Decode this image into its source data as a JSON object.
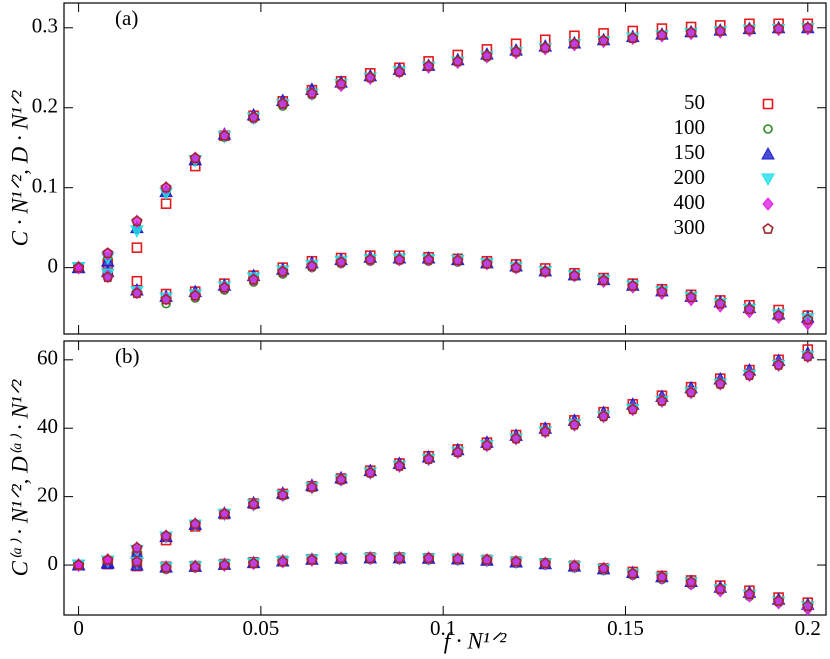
{
  "chart_data": [
    {
      "type": "scatter",
      "annotation": "(a)",
      "ylabel": "C · N¹ᐟ²,  D · N¹ᐟ²",
      "x": [
        0,
        0.008,
        0.016,
        0.024,
        0.032,
        0.04,
        0.048,
        0.056,
        0.064,
        0.072,
        0.08,
        0.088,
        0.096,
        0.104,
        0.112,
        0.12,
        0.128,
        0.136,
        0.144,
        0.152,
        0.16,
        0.168,
        0.176,
        0.184,
        0.192,
        0.2
      ],
      "xlim": [
        -0.004,
        0.205
      ],
      "xticks": [
        0,
        0.05,
        0.1,
        0.15,
        0.2
      ],
      "show_xtick_labels": false,
      "ylim": [
        -0.083,
        0.331
      ],
      "yticks": [
        0,
        0.1,
        0.2,
        0.3
      ],
      "legend": "upper right",
      "series": [
        {
          "name": "50",
          "color": "#e41a1c",
          "marker": "square",
          "upper": [
            0,
            0.005,
            0.025,
            0.08,
            0.127,
            0.165,
            0.19,
            0.208,
            0.222,
            0.233,
            0.243,
            0.25,
            0.258,
            0.266,
            0.273,
            0.28,
            0.285,
            0.29,
            0.293,
            0.296,
            0.299,
            0.301,
            0.303,
            0.305,
            0.305,
            0.305
          ],
          "lower": [
            0,
            -0.003,
            -0.017,
            -0.033,
            -0.03,
            -0.02,
            -0.01,
            0.0,
            0.008,
            0.012,
            0.015,
            0.015,
            0.013,
            0.011,
            0.008,
            0.004,
            -0.001,
            -0.007,
            -0.013,
            -0.02,
            -0.027,
            -0.034,
            -0.041,
            -0.047,
            -0.053,
            -0.06
          ]
        },
        {
          "name": "100",
          "color": "#2e8b20",
          "marker": "circle",
          "upper": [
            0,
            0.012,
            0.048,
            0.093,
            0.133,
            0.163,
            0.186,
            0.202,
            0.216,
            0.228,
            0.237,
            0.244,
            0.251,
            0.257,
            0.263,
            0.269,
            0.274,
            0.279,
            0.283,
            0.287,
            0.29,
            0.293,
            0.295,
            0.297,
            0.298,
            0.299
          ],
          "lower": [
            0,
            -0.01,
            -0.03,
            -0.045,
            -0.038,
            -0.028,
            -0.018,
            -0.008,
            0.0,
            0.005,
            0.008,
            0.009,
            0.008,
            0.007,
            0.004,
            -0.001,
            -0.006,
            -0.011,
            -0.017,
            -0.024,
            -0.031,
            -0.038,
            -0.046,
            -0.053,
            -0.06,
            -0.066
          ]
        },
        {
          "name": "150",
          "color": "#1f1fd0",
          "marker": "triangle",
          "upper": [
            0,
            0.008,
            0.05,
            0.095,
            0.135,
            0.167,
            0.191,
            0.209,
            0.223,
            0.232,
            0.24,
            0.248,
            0.253,
            0.26,
            0.267,
            0.272,
            0.277,
            0.281,
            0.285,
            0.289,
            0.292,
            0.295,
            0.297,
            0.299,
            0.3,
            0.3
          ],
          "lower": [
            0,
            -0.005,
            -0.028,
            -0.036,
            -0.03,
            -0.022,
            -0.01,
            -0.002,
            0.006,
            0.01,
            0.013,
            0.012,
            0.012,
            0.01,
            0.006,
            0.002,
            -0.004,
            -0.009,
            -0.015,
            -0.022,
            -0.029,
            -0.036,
            -0.043,
            -0.05,
            -0.058,
            -0.062
          ]
        },
        {
          "name": "200",
          "color": "#22e0e8",
          "marker": "triangle-down",
          "upper": [
            0,
            0.012,
            0.046,
            0.093,
            0.134,
            0.164,
            0.187,
            0.204,
            0.217,
            0.229,
            0.237,
            0.245,
            0.251,
            0.257,
            0.264,
            0.269,
            0.274,
            0.279,
            0.283,
            0.287,
            0.29,
            0.293,
            0.295,
            0.297,
            0.298,
            0.299
          ],
          "lower": [
            0,
            -0.008,
            -0.03,
            -0.038,
            -0.034,
            -0.024,
            -0.013,
            -0.004,
            0.003,
            0.008,
            0.01,
            0.011,
            0.01,
            0.009,
            0.005,
            0.0,
            -0.005,
            -0.01,
            -0.016,
            -0.023,
            -0.03,
            -0.037,
            -0.045,
            -0.052,
            -0.059,
            -0.064
          ]
        },
        {
          "name": "400",
          "color": "#e020e8",
          "marker": "diamond",
          "upper": [
            0,
            0.017,
            0.058,
            0.1,
            0.137,
            0.166,
            0.188,
            0.205,
            0.218,
            0.228,
            0.237,
            0.245,
            0.251,
            0.257,
            0.264,
            0.269,
            0.274,
            0.279,
            0.283,
            0.287,
            0.29,
            0.293,
            0.295,
            0.297,
            0.298,
            0.299
          ],
          "lower": [
            0,
            -0.011,
            -0.031,
            -0.039,
            -0.035,
            -0.025,
            -0.015,
            -0.005,
            0.002,
            0.007,
            0.01,
            0.01,
            0.01,
            0.009,
            0.005,
            0.0,
            -0.005,
            -0.01,
            -0.017,
            -0.024,
            -0.032,
            -0.04,
            -0.048,
            -0.055,
            -0.062,
            -0.07
          ]
        },
        {
          "name": "300",
          "color": "#a0282a",
          "marker": "pentagon",
          "upper": [
            0,
            0.018,
            0.058,
            0.1,
            0.137,
            0.165,
            0.188,
            0.205,
            0.218,
            0.23,
            0.238,
            0.245,
            0.252,
            0.258,
            0.265,
            0.27,
            0.275,
            0.28,
            0.284,
            0.287,
            0.291,
            0.294,
            0.296,
            0.298,
            0.299,
            0.3
          ],
          "lower": [
            0,
            -0.012,
            -0.032,
            -0.04,
            -0.035,
            -0.025,
            -0.015,
            -0.005,
            0.002,
            0.007,
            0.01,
            0.01,
            0.01,
            0.009,
            0.005,
            0.0,
            -0.005,
            -0.01,
            -0.016,
            -0.023,
            -0.03,
            -0.037,
            -0.045,
            -0.052,
            -0.06,
            -0.065
          ]
        }
      ]
    },
    {
      "type": "scatter",
      "annotation": "(b)",
      "ylabel": "C⁽ᵃ⁾ · N¹ᐟ²,  D⁽ᵃ⁾ · N¹ᐟ²",
      "xlabel": "f · N¹ᐟ²",
      "x": [
        0,
        0.008,
        0.016,
        0.024,
        0.032,
        0.04,
        0.048,
        0.056,
        0.064,
        0.072,
        0.08,
        0.088,
        0.096,
        0.104,
        0.112,
        0.12,
        0.128,
        0.136,
        0.144,
        0.152,
        0.16,
        0.168,
        0.176,
        0.184,
        0.192,
        0.2
      ],
      "xlim": [
        -0.004,
        0.205
      ],
      "xticks": [
        0,
        0.05,
        0.1,
        0.15,
        0.2
      ],
      "show_xtick_labels": true,
      "ylim": [
        -14.6,
        65.5
      ],
      "yticks": [
        0,
        20,
        40,
        60
      ],
      "series": [
        {
          "name": "50",
          "color": "#e41a1c",
          "marker": "square",
          "upper": [
            0,
            0.3,
            2.5,
            7.3,
            11.3,
            14.9,
            18.0,
            20.8,
            23.0,
            25.3,
            27.6,
            29.7,
            31.8,
            33.8,
            35.8,
            38.0,
            40.0,
            42.3,
            44.7,
            47.0,
            49.5,
            52.0,
            54.5,
            57.0,
            60.0,
            63.0
          ],
          "lower": [
            0,
            0.3,
            -0.3,
            -0.5,
            -0.3,
            0.3,
            0.8,
            1.2,
            1.7,
            2.0,
            2.2,
            2.2,
            2.0,
            1.8,
            1.5,
            1.0,
            0.5,
            -0.2,
            -1.0,
            -2.0,
            -3.2,
            -4.5,
            -6.0,
            -7.5,
            -9.5,
            -11.0
          ]
        },
        {
          "name": "100",
          "color": "#2e8b20",
          "marker": "circle",
          "upper": [
            0,
            1.0,
            4.0,
            8.0,
            11.5,
            14.7,
            17.5,
            20.2,
            22.5,
            24.7,
            26.8,
            28.8,
            30.8,
            32.8,
            34.8,
            36.8,
            38.9,
            41.0,
            43.3,
            45.5,
            47.8,
            50.3,
            52.8,
            55.5,
            58.3,
            61.0
          ],
          "lower": [
            0,
            0.8,
            0.3,
            -1.3,
            -0.8,
            -0.2,
            0.3,
            0.8,
            1.3,
            1.6,
            1.6,
            1.6,
            1.5,
            1.3,
            1.0,
            0.5,
            0.0,
            -0.8,
            -1.6,
            -3.0,
            -4.2,
            -5.7,
            -7.5,
            -9.2,
            -11.0,
            -12.5
          ]
        },
        {
          "name": "150",
          "color": "#1f1fd0",
          "marker": "triangle",
          "upper": [
            0,
            0.8,
            3.5,
            8.3,
            11.9,
            15.2,
            18.2,
            21.0,
            23.3,
            25.5,
            27.6,
            29.7,
            31.6,
            33.7,
            35.9,
            37.9,
            40.0,
            42.3,
            44.6,
            47.0,
            49.3,
            51.8,
            54.4,
            57.0,
            59.8,
            62.0
          ],
          "lower": [
            0,
            0.5,
            0.0,
            -0.6,
            -0.4,
            0.2,
            0.7,
            1.2,
            1.7,
            2.0,
            2.1,
            2.1,
            2.0,
            1.8,
            1.4,
            0.9,
            0.4,
            -0.3,
            -1.1,
            -2.2,
            -3.4,
            -4.8,
            -6.5,
            -8.0,
            -10.0,
            -11.5
          ]
        },
        {
          "name": "200",
          "color": "#22e0e8",
          "marker": "triangle-down",
          "upper": [
            0,
            1.2,
            4.3,
            8.2,
            11.7,
            14.8,
            17.6,
            20.3,
            22.6,
            24.8,
            26.9,
            28.9,
            30.9,
            32.9,
            34.9,
            36.9,
            38.9,
            41.0,
            43.4,
            45.5,
            47.9,
            50.4,
            52.9,
            55.5,
            58.4,
            61.0
          ],
          "lower": [
            0,
            1.2,
            0.8,
            -0.8,
            -0.5,
            0.0,
            0.5,
            1.0,
            1.5,
            1.9,
            1.9,
            1.9,
            1.8,
            1.6,
            1.3,
            0.8,
            0.3,
            -0.5,
            -1.3,
            -2.7,
            -3.8,
            -5.2,
            -7.2,
            -8.8,
            -10.8,
            -12.2
          ]
        },
        {
          "name": "400",
          "color": "#e020e8",
          "marker": "diamond",
          "upper": [
            0,
            1.5,
            5.0,
            8.5,
            12.0,
            15.0,
            17.8,
            20.5,
            22.8,
            25.0,
            27.0,
            29.0,
            31.0,
            33.0,
            35.0,
            37.0,
            39.0,
            41.0,
            43.5,
            45.5,
            48.0,
            50.5,
            53.0,
            55.5,
            58.5,
            61.0
          ],
          "lower": [
            0,
            1.5,
            1.0,
            -0.8,
            -0.5,
            0.0,
            0.5,
            1.0,
            1.5,
            2.0,
            2.0,
            2.0,
            2.0,
            1.8,
            1.5,
            1.0,
            0.5,
            -0.3,
            -1.0,
            -2.6,
            -3.8,
            -5.5,
            -7.5,
            -9.0,
            -11.0,
            -12.8
          ]
        },
        {
          "name": "300",
          "color": "#a0282a",
          "marker": "pentagon",
          "upper": [
            0,
            1.5,
            5.0,
            8.5,
            12.0,
            15.0,
            17.8,
            20.5,
            22.8,
            25.0,
            27.0,
            29.0,
            31.0,
            33.0,
            35.0,
            37.0,
            39.0,
            41.0,
            43.5,
            45.5,
            48.0,
            50.5,
            53.0,
            55.5,
            58.5,
            61.0
          ],
          "lower": [
            0,
            1.5,
            1.0,
            -0.8,
            -0.5,
            0.0,
            0.5,
            1.0,
            1.5,
            2.0,
            2.0,
            2.0,
            2.0,
            1.8,
            1.5,
            1.0,
            0.5,
            -0.3,
            -1.0,
            -2.5,
            -3.5,
            -5.0,
            -7.0,
            -8.5,
            -10.5,
            -12.0
          ]
        }
      ]
    }
  ]
}
